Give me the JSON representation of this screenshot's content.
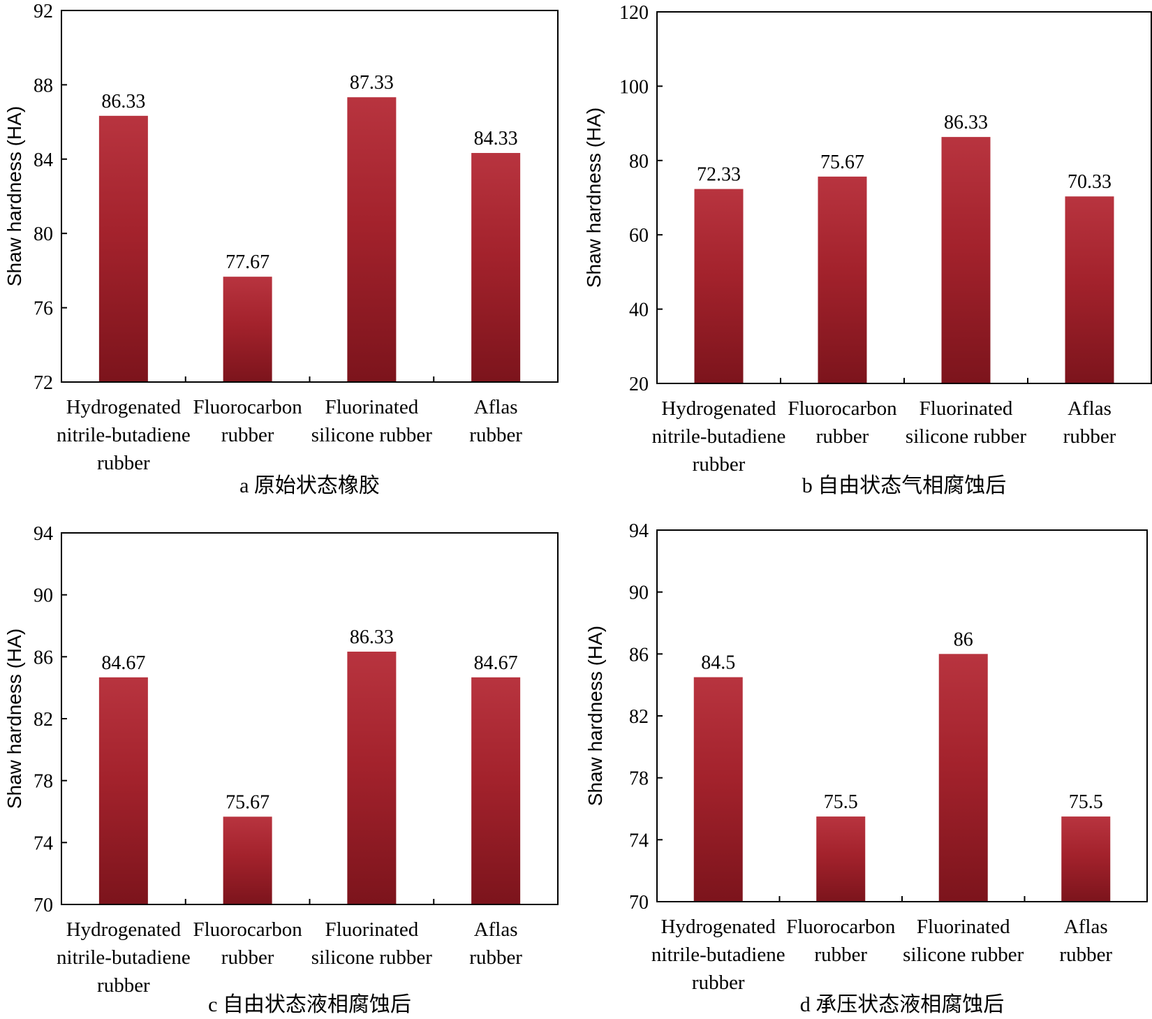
{
  "chart_data": [
    {
      "type": "bar",
      "caption": "a  原始状态橡胶",
      "ylabel": "Shaw hardness (HA)",
      "ylim": [
        72,
        92
      ],
      "yticks": [
        72,
        76,
        80,
        84,
        88,
        92
      ],
      "categories": [
        [
          "Hydrogenated",
          "nitrile-butadiene",
          "rubber"
        ],
        [
          "Fluorocarbon",
          "rubber"
        ],
        [
          "Fluorinated",
          "silicone rubber"
        ],
        [
          "Aflas",
          "rubber"
        ]
      ],
      "values": [
        86.33,
        77.67,
        87.33,
        84.33
      ],
      "value_labels": [
        "86.33",
        "77.67",
        "87.33",
        "84.33"
      ]
    },
    {
      "type": "bar",
      "caption": "b  自由状态气相腐蚀后",
      "ylabel": "Shaw hardness (HA)",
      "ylim": [
        20,
        120
      ],
      "yticks": [
        20,
        40,
        60,
        80,
        100,
        120
      ],
      "categories": [
        [
          "Hydrogenated",
          "nitrile-butadiene",
          "rubber"
        ],
        [
          "Fluorocarbon",
          "rubber"
        ],
        [
          "Fluorinated",
          "silicone rubber"
        ],
        [
          "Aflas",
          "rubber"
        ]
      ],
      "values": [
        72.33,
        75.67,
        86.33,
        70.33
      ],
      "value_labels": [
        "72.33",
        "75.67",
        "86.33",
        "70.33"
      ]
    },
    {
      "type": "bar",
      "caption": "c  自由状态液相腐蚀后",
      "ylabel": "Shaw hardness (HA)",
      "ylim": [
        70,
        94
      ],
      "yticks": [
        70,
        74,
        78,
        82,
        86,
        90,
        94
      ],
      "categories": [
        [
          "Hydrogenated",
          "nitrile-butadiene",
          "rubber"
        ],
        [
          "Fluorocarbon",
          "rubber"
        ],
        [
          "Fluorinated",
          "silicone rubber"
        ],
        [
          "Aflas",
          "rubber"
        ]
      ],
      "values": [
        84.67,
        75.67,
        86.33,
        84.67
      ],
      "value_labels": [
        "84.67",
        "75.67",
        "86.33",
        "84.67"
      ]
    },
    {
      "type": "bar",
      "caption": "d  承压状态液相腐蚀后",
      "ylabel": "Shaw hardness (HA)",
      "ylim": [
        70,
        94
      ],
      "yticks": [
        70,
        74,
        78,
        82,
        86,
        90,
        94
      ],
      "categories": [
        [
          "Hydrogenated",
          "nitrile-butadiene",
          "rubber"
        ],
        [
          "Fluorocarbon",
          "rubber"
        ],
        [
          "Fluorinated",
          "silicone rubber"
        ],
        [
          "Aflas",
          "rubber"
        ]
      ],
      "values": [
        84.5,
        75.5,
        86,
        75.5
      ],
      "value_labels": [
        "84.5",
        "75.5",
        "86",
        "75.5"
      ]
    }
  ],
  "colors": {
    "bar_top": "#b8343f",
    "bar_mid": "#a3222c",
    "bar_bottom": "#7c141c",
    "axis": "#000000"
  }
}
